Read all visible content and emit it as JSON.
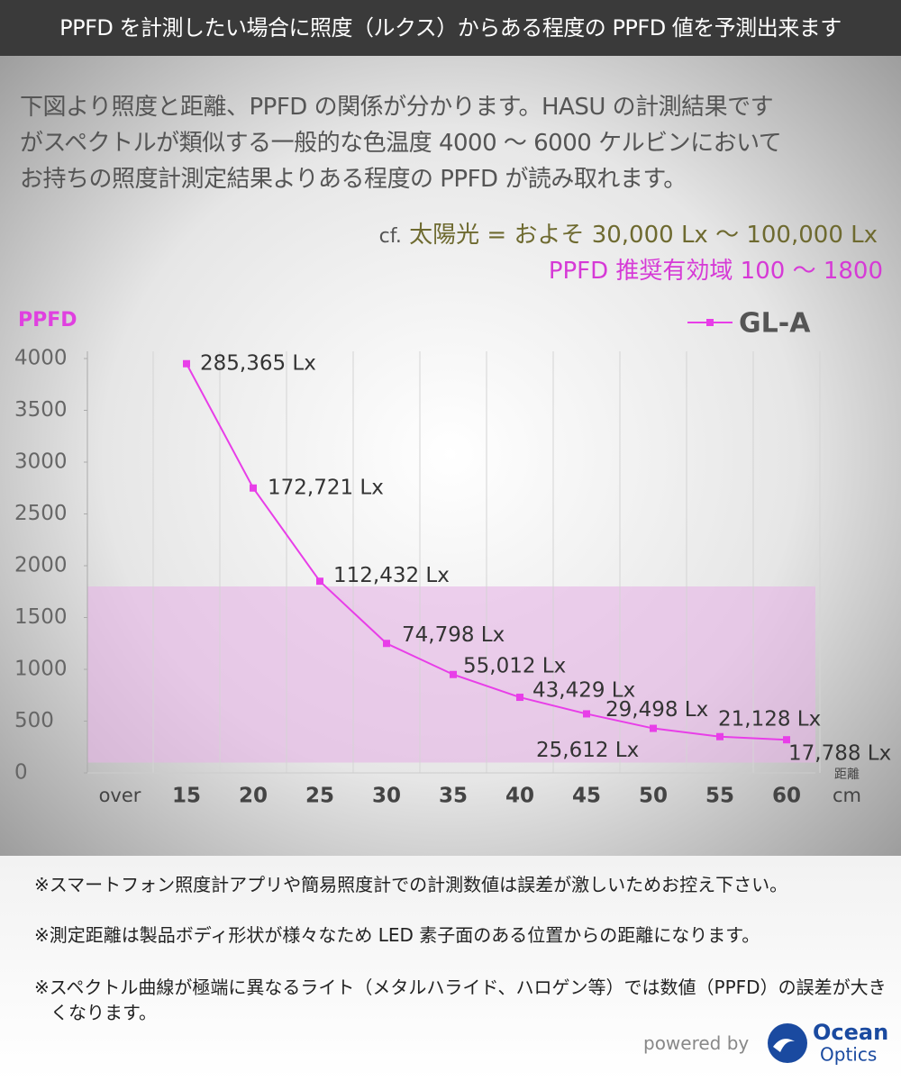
{
  "header": {
    "title": "PPFD を計測したい場合に照度（ルクス）からある程度の PPFD 値を予測出来ます"
  },
  "intro": {
    "lines": [
      "下図より照度と距離、PPFD の関係が分かります。HASU の計測結果です",
      "がスペクトルが類似する一般的な色温度 4000 ～ 6000 ケルビンにおいて",
      "お持ちの照度計測定結果よりある程度の PPFD が読み取れます。"
    ],
    "reference_prefix": "cf.",
    "reference": "太陽光 = およそ 30,000 Lx ～ 100,000 Lx",
    "recommended": "PPFD 推奨有効域 100 ～ 1800"
  },
  "chart_data": {
    "type": "line",
    "y_label": "PPFD",
    "x_label": "距離",
    "x_unit": "cm",
    "categories": [
      "over",
      "15",
      "20",
      "25",
      "30",
      "35",
      "40",
      "45",
      "50",
      "55",
      "60"
    ],
    "series": [
      {
        "name": "GL-A",
        "color": "#e83ee8",
        "values": [
          null,
          3950,
          2750,
          1850,
          1250,
          950,
          730,
          570,
          430,
          350,
          320
        ],
        "point_labels": [
          null,
          "285,365 Lx",
          "172,721 Lx",
          "112,432 Lx",
          "74,798 Lx",
          "55,012 Lx",
          "43,429 Lx",
          "29,498 Lx",
          "25,612 Lx",
          "21,128 Lx",
          "17,788 Lx"
        ]
      }
    ],
    "ylim": [
      0,
      4000
    ],
    "yticks": [
      0,
      500,
      1000,
      1500,
      2000,
      2500,
      3000,
      3500,
      4000
    ],
    "band": {
      "from": 100,
      "to": 1800,
      "color": "#e6b4e6"
    },
    "grid": true,
    "legend": "top-right"
  },
  "notes": [
    "※スマートフォン照度計アプリや簡易照度計での計測数値は誤差が激しいためお控え下さい。",
    "※測定距離は製品ボディ形状が様々なため LED 素子面のある位置からの距離になります。",
    "※スペクトル曲線が極端に異なるライト（メタルハライド、ハロゲン等）では数値（PPFD）の誤差が大きくなります。"
  ],
  "footer": {
    "powered_by": "powered by",
    "logo_top": "Ocean",
    "logo_bottom": "Optics"
  }
}
